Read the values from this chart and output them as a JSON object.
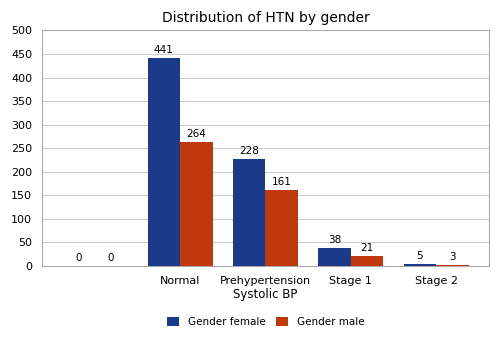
{
  "title": "Distribution of HTN by gender",
  "xlabel": "Systolic BP",
  "ylabel": "",
  "all_categories": [
    "",
    "Normal",
    "Prehypertension",
    "Stage 1",
    "Stage 2"
  ],
  "female_values": [
    0,
    441,
    228,
    38,
    5
  ],
  "male_values": [
    0,
    264,
    161,
    21,
    3
  ],
  "female_color": "#1B3A8C",
  "male_color": "#C0390C",
  "ylim": [
    0,
    500
  ],
  "yticks": [
    0,
    50,
    100,
    150,
    200,
    250,
    300,
    350,
    400,
    450,
    500
  ],
  "legend_female": "Gender female",
  "legend_male": "Gender male",
  "bar_width": 0.38,
  "title_fontsize": 10,
  "label_fontsize": 8.5,
  "tick_fontsize": 8,
  "annotation_fontsize": 7.5,
  "background_color": "#ffffff",
  "grid_color": "#cccccc",
  "border_color": "#aaaaaa"
}
